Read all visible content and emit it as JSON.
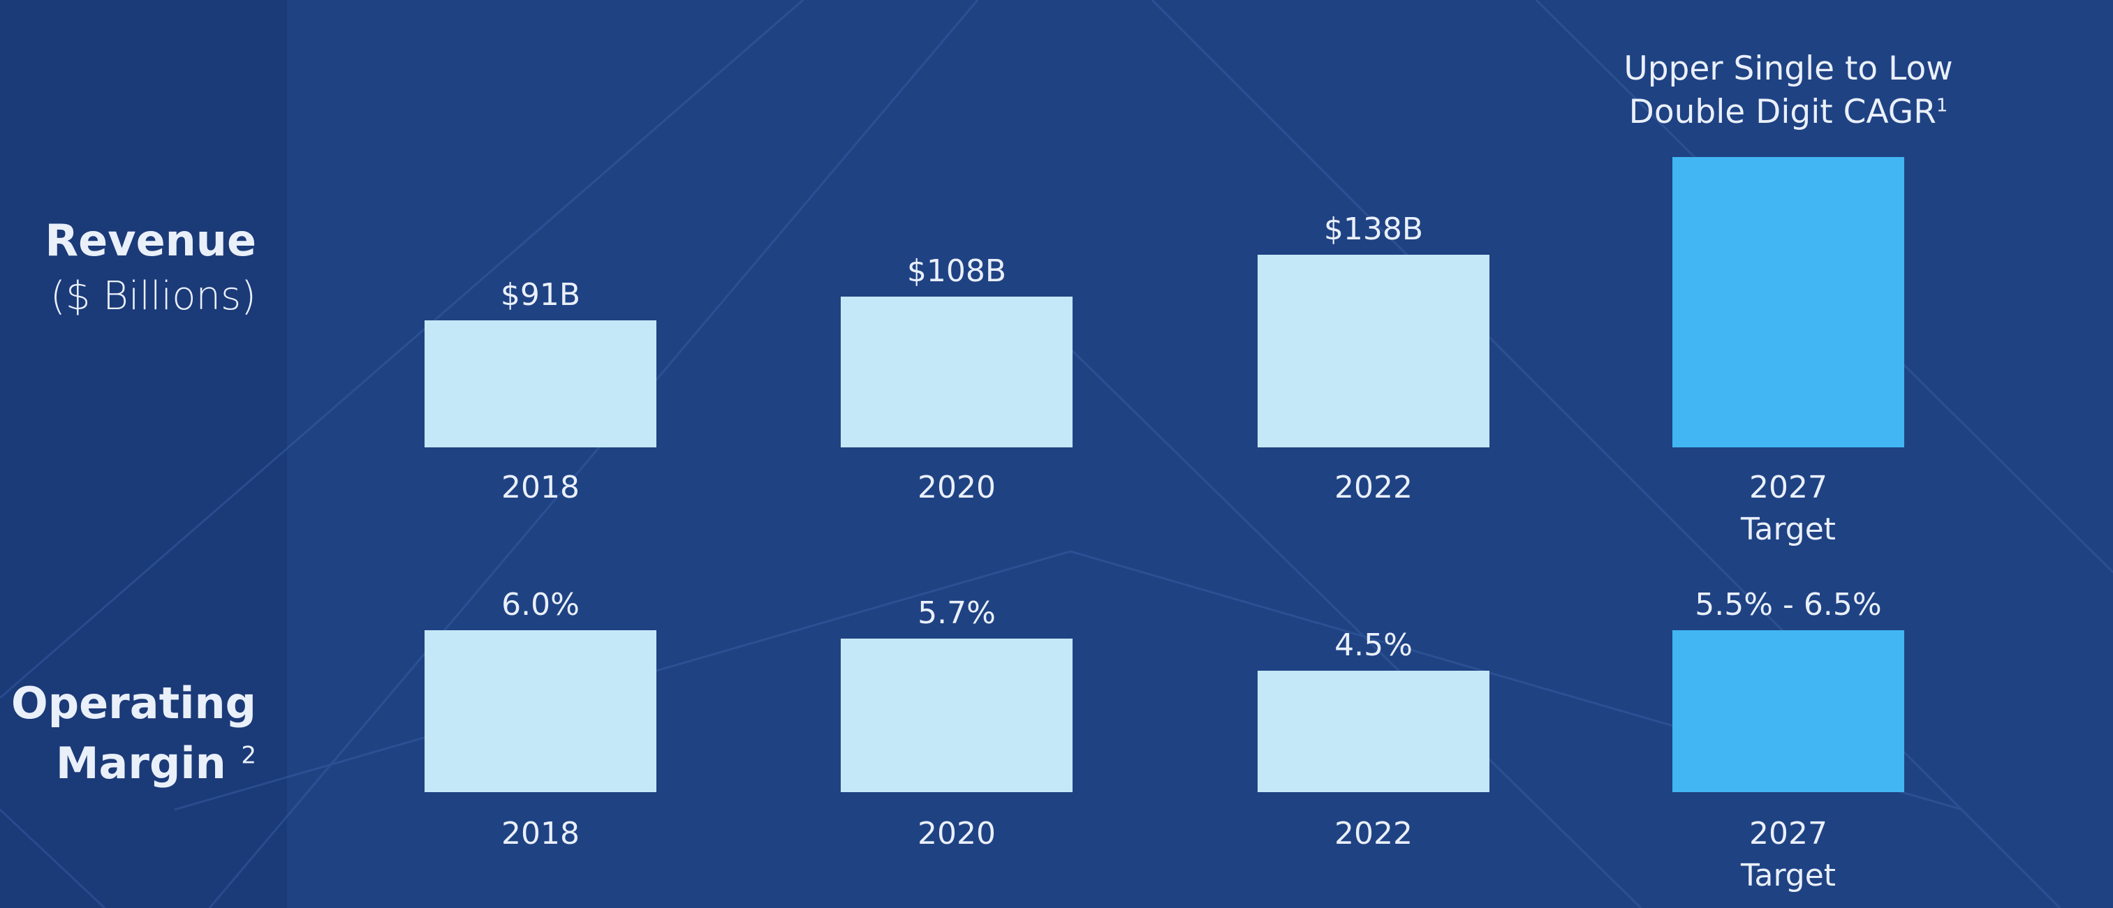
{
  "chart_data": [
    {
      "type": "bar",
      "title": "Revenue",
      "subtitle": "($ Billions)",
      "categories": [
        "2018",
        "2020",
        "2022",
        "2027 Target"
      ],
      "values": [
        91,
        108,
        138,
        208
      ],
      "value_labels": [
        "$91B",
        "$108B",
        "$138B",
        null
      ],
      "colors": [
        "#c5e8f8",
        "#c5e8f8",
        "#c5e8f8",
        "#41b6f2"
      ],
      "annotation": {
        "text": "Upper Single to Low Double Digit CAGR",
        "footnote": "1"
      }
    },
    {
      "type": "bar",
      "title": "Operating Margin",
      "title_footnote": "2",
      "categories": [
        "2018",
        "2020",
        "2022",
        "2027 Target"
      ],
      "values": [
        6.0,
        5.7,
        4.5,
        6.0
      ],
      "value_labels": [
        "6.0%",
        "5.7%",
        "4.5%",
        "5.5% - 6.5%"
      ],
      "colors": [
        "#c5e8f8",
        "#c5e8f8",
        "#c5e8f8",
        "#41b6f2"
      ]
    }
  ]
}
